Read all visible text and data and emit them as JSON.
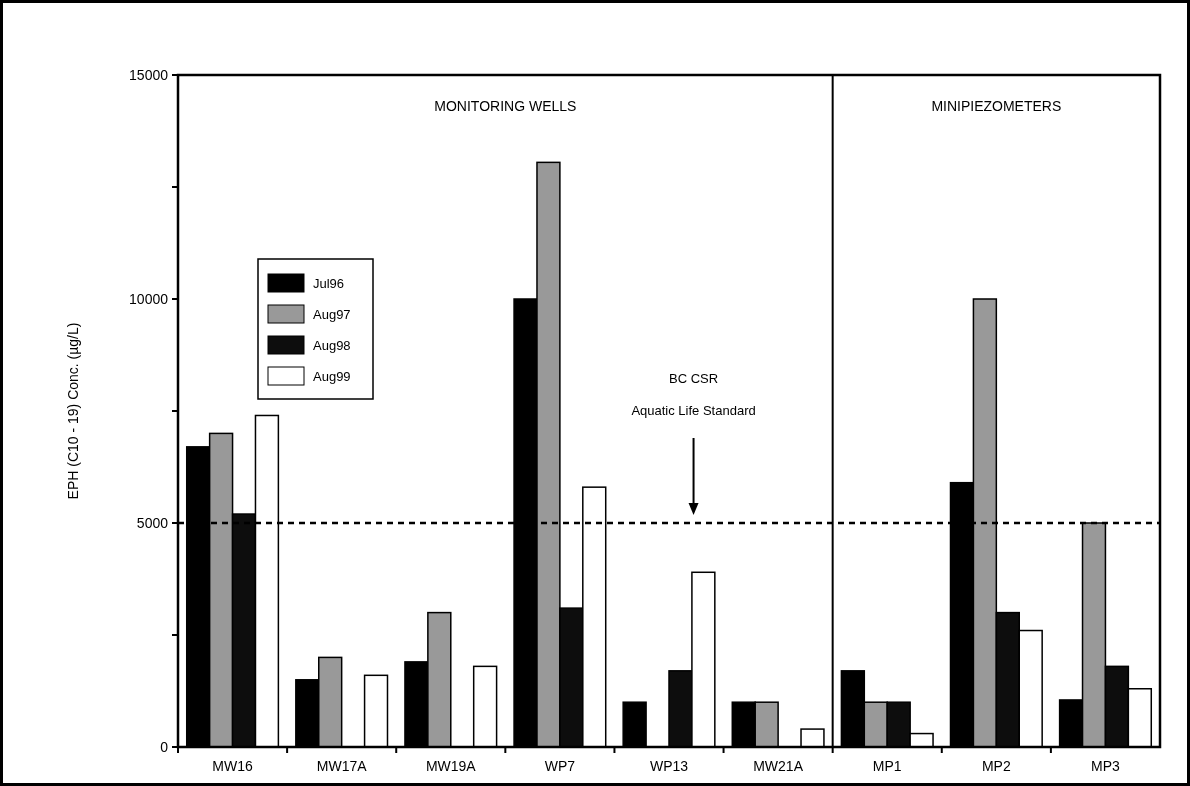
{
  "chart_data": {
    "type": "bar",
    "ylabel": "EPH (C10 - 19) Conc. (µg/L)",
    "categories": [
      "MW16",
      "MW17A",
      "MW19A",
      "WP7",
      "WP13",
      "MW21A",
      "MP1",
      "MP2",
      "MP3"
    ],
    "series": [
      {
        "name": "Jul96",
        "color": "#000000",
        "values": [
          6700,
          1500,
          1900,
          10000,
          1000,
          1000,
          1700,
          5900,
          1050
        ]
      },
      {
        "name": "Aug97",
        "color": "#999999",
        "values": [
          7000,
          2000,
          3000,
          13050,
          null,
          1000,
          1000,
          10000,
          5000
        ]
      },
      {
        "name": "Aug98",
        "color": "#0d0d0d",
        "values": [
          5200,
          null,
          null,
          3100,
          1700,
          null,
          1000,
          3000,
          1800
        ]
      },
      {
        "name": "Aug99",
        "color": "#ffffff",
        "values": [
          7400,
          1600,
          1800,
          5800,
          3900,
          400,
          300,
          2600,
          1300
        ]
      }
    ],
    "ylim": [
      0,
      15000
    ],
    "yticks": [
      0,
      {
        "value": 2500,
        "label": null
      },
      5000,
      {
        "value": 7500,
        "label": null
      },
      10000,
      {
        "value": 12500,
        "label": null
      },
      15000
    ],
    "ref_lines": [
      {
        "axis": "y",
        "value": 5000,
        "label": "BC CSR\nAquatic Life Standard",
        "line_style": "dashed",
        "color": "#000000"
      },
      {
        "axis": "x",
        "value": "MP1",
        "line_style": "solid",
        "color": "#000000"
      }
    ],
    "annotations": [
      "MONITORING WELLS",
      "MINIPIEZOMETERS"
    ],
    "legend": "left",
    "grid": false
  }
}
